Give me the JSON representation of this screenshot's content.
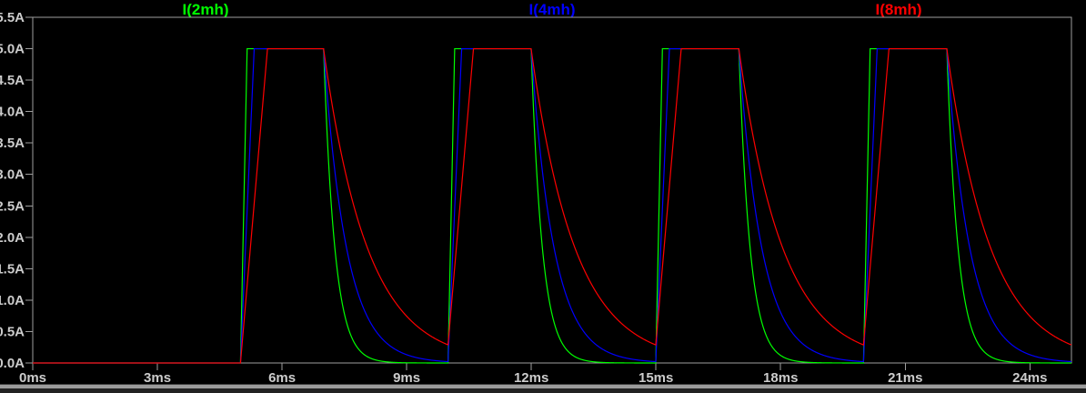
{
  "window": {
    "background_color": "#000000",
    "bottom_border_color": "#9b9b9b"
  },
  "chart_data": {
    "type": "line",
    "title": "",
    "xlabel": "",
    "ylabel": "",
    "x_unit": "ms",
    "y_unit": "A",
    "xlim": [
      0,
      25
    ],
    "ylim": [
      0,
      5.5
    ],
    "grid": false,
    "legend_position": "top",
    "axis_color": "#9e9e9e",
    "label_color": "#cccccc",
    "x_ticks": {
      "values": [
        0,
        3,
        6,
        9,
        12,
        15,
        18,
        21,
        24
      ],
      "labels": [
        "0ms",
        "3ms",
        "6ms",
        "9ms",
        "12ms",
        "15ms",
        "18ms",
        "21ms",
        "24ms"
      ]
    },
    "y_ticks": {
      "values": [
        5.5,
        5.0,
        4.5,
        4.0,
        3.5,
        3.0,
        2.5,
        2.0,
        1.5,
        1.0,
        0.5,
        0.0
      ],
      "labels": [
        "5.5A",
        "5.0A",
        "4.5A",
        "4.0A",
        "3.5A",
        "3.0A",
        "2.5A",
        "2.0A",
        "1.5A",
        "1.0A",
        "0.5A",
        "0.0A"
      ]
    },
    "excitation": {
      "amplitude_A": 5.0,
      "pulse_on_intervals_ms": [
        [
          5,
          7
        ],
        [
          10,
          12
        ],
        [
          15,
          17
        ],
        [
          20,
          22
        ]
      ]
    },
    "series": [
      {
        "name": "I(2mh)",
        "color": "#00ff00",
        "inductance_mH": 2,
        "peak_A": 5.0,
        "rise_to_peak_ms": 0.16,
        "decay_tau_ms": 0.27
      },
      {
        "name": "I(4mh)",
        "color": "#0000ff",
        "inductance_mH": 4,
        "peak_A": 5.0,
        "rise_to_peak_ms": 0.33,
        "decay_tau_ms": 0.55
      },
      {
        "name": "I(8mh)",
        "color": "#ff0000",
        "inductance_mH": 8,
        "peak_A": 5.0,
        "rise_to_peak_ms": 0.65,
        "decay_tau_ms": 1.05
      }
    ]
  }
}
